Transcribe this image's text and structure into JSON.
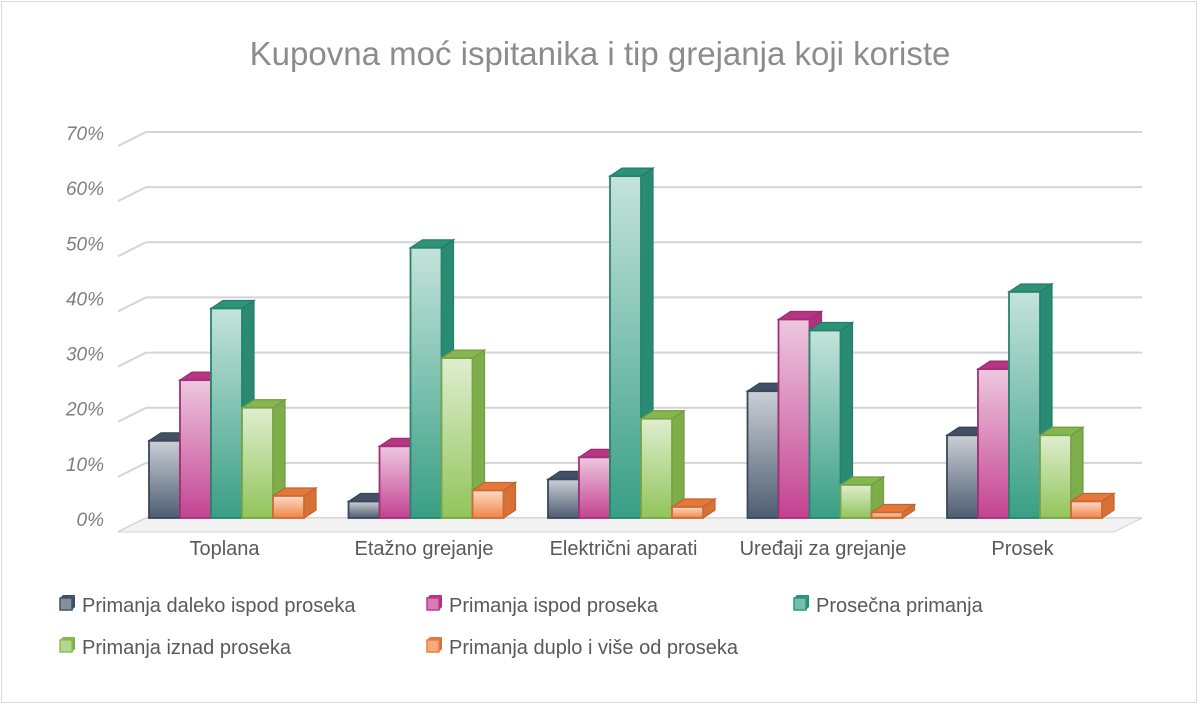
{
  "chart_data": {
    "type": "bar",
    "title": "Kupovna moć ispitanika i tip grejanja koji koriste",
    "categories": [
      "Toplana",
      "Etažno grejanje",
      "Električni aparati",
      "Uređaji za grejanje",
      "Prosek"
    ],
    "y_ticks": [
      "0%",
      "10%",
      "20%",
      "30%",
      "40%",
      "50%",
      "60%",
      "70%"
    ],
    "ylim": [
      0,
      70
    ],
    "grid": true,
    "legend_position": "bottom",
    "series": [
      {
        "name": "Primanja daleko ispod proseka",
        "values": [
          14,
          3,
          7,
          23,
          15
        ],
        "color": "#44546a"
      },
      {
        "name": "Primanja ispod proseka",
        "values": [
          25,
          13,
          11,
          36,
          27
        ],
        "color": "#c0398b"
      },
      {
        "name": "Prosečna primanja",
        "values": [
          38,
          49,
          62,
          34,
          41
        ],
        "color": "#2e9a7e"
      },
      {
        "name": "Primanja iznad proseka",
        "values": [
          20,
          29,
          18,
          6,
          15
        ],
        "color": "#8cc152"
      },
      {
        "name": "Primanja duplo i više od proseka",
        "values": [
          4,
          5,
          2,
          1,
          3
        ],
        "color": "#f07d3c"
      }
    ]
  }
}
